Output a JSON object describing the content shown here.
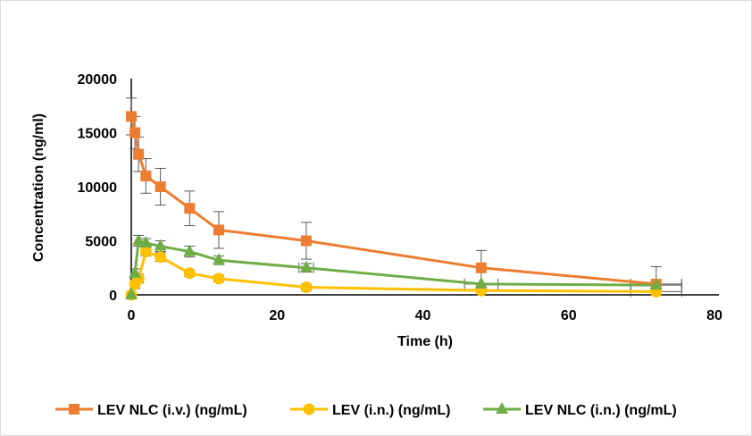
{
  "chart_data": {
    "type": "line",
    "title": "",
    "xlabel": "Time (h)",
    "ylabel": "Concentration (ng/ml)",
    "xlim": [
      0,
      80
    ],
    "ylim": [
      0,
      20000
    ],
    "xticks": [
      0,
      20,
      40,
      60,
      80
    ],
    "yticks": [
      0,
      5000,
      10000,
      15000,
      20000
    ],
    "grid": false,
    "legend_position": "bottom",
    "x": [
      0,
      0.5,
      1,
      2,
      4,
      8,
      12,
      24,
      48,
      72
    ],
    "series": [
      {
        "name": "LEV NLC (i.v.) (ng/mL)",
        "color": "#ed7d31",
        "marker": "square",
        "values": [
          16500,
          15000,
          13000,
          11000,
          10000,
          8000,
          6000,
          5000,
          2500,
          1000
        ],
        "y_error": [
          1700,
          1500,
          1600,
          1600,
          1700,
          1600,
          1700,
          1700,
          1600,
          1600
        ],
        "x_error": [
          0,
          0,
          0,
          0,
          0,
          0,
          0,
          0,
          0,
          3.5
        ]
      },
      {
        "name": "LEV (i.n.) (ng/mL)",
        "color": "#ffc000",
        "marker": "circle",
        "values": [
          0,
          1000,
          1500,
          4000,
          3500,
          2000,
          1500,
          700,
          400,
          300
        ],
        "y_error": [
          0,
          400,
          400,
          400,
          400,
          300,
          300,
          300,
          0,
          0
        ],
        "x_error": [
          0,
          0,
          0,
          0,
          0,
          0,
          0,
          0,
          0,
          3.5
        ]
      },
      {
        "name": "LEV NLC (i.n.) (ng/mL)",
        "color": "#70ad47",
        "marker": "triangle",
        "values": [
          0,
          2000,
          5000,
          4800,
          4500,
          4000,
          3200,
          2500,
          1000,
          900
        ],
        "y_error": [
          0,
          400,
          500,
          400,
          500,
          500,
          400,
          400,
          0,
          0
        ],
        "x_error": [
          0,
          0,
          0,
          0,
          0,
          0,
          0,
          1,
          2.3,
          3.5
        ]
      }
    ]
  }
}
